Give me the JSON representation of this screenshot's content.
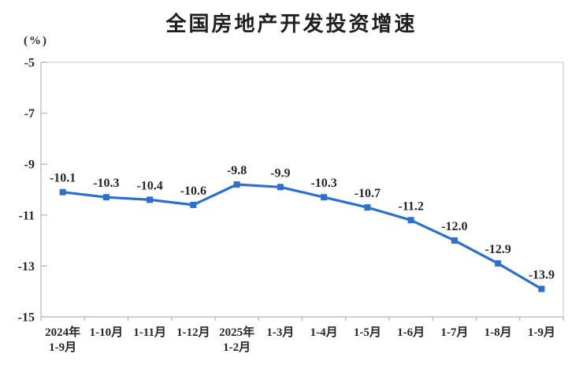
{
  "chart_data": {
    "type": "line",
    "title": "全国房地产开发投资增速",
    "unit_label": "(%)",
    "categories": [
      "2024年\n1-9月",
      "1-10月",
      "1-11月",
      "1-12月",
      "2025年\n1-2月",
      "1-3月",
      "1-4月",
      "1-5月",
      "1-6月",
      "1-7月",
      "1-8月",
      "1-9月"
    ],
    "values": [
      -10.1,
      -10.3,
      -10.4,
      -10.6,
      -9.8,
      -9.9,
      -10.3,
      -10.7,
      -11.2,
      -12.0,
      -12.9,
      -13.9
    ],
    "data_labels": [
      "-10.1",
      "-10.3",
      "-10.4",
      "-10.6",
      "-9.8",
      "-9.9",
      "-10.3",
      "-10.7",
      "-11.2",
      "-12.0",
      "-12.9",
      "-13.9"
    ],
    "ylim": [
      -15,
      -5
    ],
    "y_ticks": [
      -5,
      -7,
      -9,
      -11,
      -13,
      -15
    ],
    "grid": false,
    "legend_position": "none",
    "marker": "square",
    "colors": {
      "line": "#2B70CE",
      "marker": "#2B70CE",
      "text": "#262626",
      "axis": "#b3b3b3",
      "frame": "#d9d9d9",
      "title": "#1f1f1f",
      "background": "#ffffff"
    }
  }
}
